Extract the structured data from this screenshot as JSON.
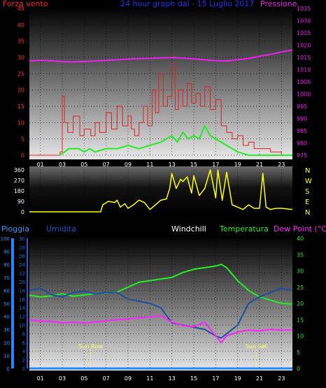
{
  "header": {
    "left_label": "Forza vento",
    "center_label": "24 hour graph dal - 15 Luglio 2017",
    "right_label": "Pressione"
  },
  "colors": {
    "wind": "#e02020",
    "gust_left": "#ff0000",
    "gust_green": "#22ee22",
    "pressure": "#ee22ee",
    "direction": "#ffff00",
    "rain": "#2288ff",
    "humidity": "#1a4fa0",
    "temperature": "#22ee22",
    "dewpoint": "#ff22ff",
    "windchill": "#ffffff",
    "sun": "#ffff66"
  },
  "chart_data": [
    {
      "type": "line",
      "title": "24 hour graph dal - 15 Luglio 2017",
      "x_ticks": [
        "01",
        "03",
        "05",
        "07",
        "09",
        "11",
        "13",
        "15",
        "17",
        "19",
        "21",
        "23"
      ],
      "y_left": {
        "label": "Forza vento",
        "ticks": [
          0,
          5,
          10,
          15,
          20,
          25,
          30,
          35,
          40,
          45
        ],
        "range": [
          0,
          45
        ]
      },
      "y_right": {
        "label": "Pressione",
        "ticks": [
          975,
          980,
          985,
          990,
          995,
          1000,
          1005,
          1010,
          1015,
          1020,
          1025,
          1030,
          1035
        ],
        "range": [
          975,
          1035
        ]
      },
      "series": [
        {
          "role": "wind",
          "axis": "left",
          "x": [
            0,
            2.8,
            3.0,
            3.2,
            3.5,
            4.0,
            4.6,
            5.0,
            5.6,
            6.0,
            6.4,
            7.0,
            7.5,
            8.0,
            8.5,
            9.0,
            9.3,
            9.6,
            10.0,
            10.4,
            10.8,
            11.2,
            11.5,
            11.8,
            12.2,
            12.6,
            13.0,
            13.3,
            13.6,
            14.0,
            14.4,
            14.8,
            15.2,
            15.6,
            16.0,
            16.5,
            17.0,
            17.5,
            18.0,
            18.5,
            19.0,
            19.5,
            20.0,
            20.5,
            21.0,
            22.0,
            23.0,
            24.0
          ],
          "y": [
            0,
            1,
            18,
            10,
            7,
            12,
            6,
            8,
            6,
            10,
            7,
            13,
            8,
            15,
            9,
            12,
            8,
            6,
            10,
            15,
            9,
            20,
            13,
            25,
            15,
            18,
            28,
            14,
            20,
            15,
            22,
            16,
            19,
            15,
            21,
            14,
            17,
            9,
            7,
            5,
            6,
            3,
            4,
            2,
            2,
            1,
            0,
            0
          ]
        },
        {
          "role": "gust",
          "axis": "left",
          "x": [
            2.8,
            3.2,
            3.6,
            4.5,
            5.0,
            5.5,
            6.0,
            7.0,
            8.0,
            9.0,
            10.0,
            11.0,
            12.0,
            12.5,
            13.0,
            13.5,
            14.0,
            14.5,
            15.0,
            15.5,
            16.0,
            16.5,
            17.0,
            17.5,
            18.0,
            18.5,
            19.0,
            20.0,
            21.0,
            22.0,
            23.0,
            24.0
          ],
          "y": [
            0,
            1,
            2,
            2,
            1,
            2,
            1,
            2,
            2,
            3,
            2,
            3,
            4,
            5,
            6,
            4,
            7,
            5,
            6,
            5,
            9,
            6,
            5,
            4,
            3,
            2,
            1,
            0,
            0,
            0,
            0,
            0
          ]
        },
        {
          "role": "pressure",
          "axis": "right",
          "x": [
            0,
            1,
            2,
            3,
            4,
            5,
            6,
            7,
            8,
            9,
            10,
            11,
            12,
            13,
            14,
            15,
            16,
            17,
            18,
            19,
            20,
            21,
            22,
            23,
            24
          ],
          "y": [
            1013.5,
            1013.8,
            1013.6,
            1013.2,
            1013.1,
            1013.3,
            1013.5,
            1013.8,
            1014.0,
            1014.3,
            1014.5,
            1014.6,
            1014.8,
            1014.9,
            1014.7,
            1014.4,
            1014.0,
            1013.6,
            1013.5,
            1014.0,
            1014.6,
            1015.4,
            1016.2,
            1017.2,
            1018.0
          ]
        }
      ]
    },
    {
      "type": "line",
      "y_left": {
        "ticks": [
          0,
          90,
          180,
          270,
          360
        ],
        "range": [
          0,
          360
        ]
      },
      "y_right": {
        "ticks": [
          "N",
          "W",
          "S",
          "E",
          "N"
        ]
      },
      "series": [
        {
          "role": "direction",
          "x": [
            0,
            6.5,
            6.7,
            7.2,
            7.8,
            8.0,
            8.3,
            8.7,
            9.0,
            9.5,
            10.0,
            10.5,
            11.0,
            11.5,
            12.0,
            12.5,
            12.8,
            13.0,
            13.4,
            13.8,
            14.0,
            14.4,
            14.8,
            15.0,
            15.5,
            16.0,
            16.5,
            17.0,
            17.2,
            17.6,
            18.0,
            18.5,
            19.0,
            19.5,
            20.0,
            20.5,
            21.0,
            21.3,
            21.6,
            22.0,
            22.5,
            23.0,
            24.0
          ],
          "y": [
            0,
            0,
            60,
            90,
            80,
            100,
            40,
            70,
            30,
            60,
            100,
            80,
            20,
            60,
            100,
            110,
            200,
            330,
            200,
            280,
            260,
            300,
            160,
            310,
            140,
            200,
            360,
            120,
            360,
            100,
            340,
            60,
            40,
            20,
            60,
            30,
            30,
            330,
            40,
            20,
            30,
            30,
            20
          ]
        }
      ]
    },
    {
      "type": "line",
      "x_ticks": [
        "01",
        "03",
        "05",
        "07",
        "09",
        "11",
        "13",
        "15",
        "17",
        "19",
        "21",
        "23"
      ],
      "legend": [
        "Pioggia",
        "Umidita",
        "Windchill",
        "Temperatura",
        "Dew Point (°C)"
      ],
      "y_rain": {
        "label": "Pioggia",
        "ticks": [
          0,
          10,
          20,
          30,
          40,
          50,
          60,
          70,
          80,
          90,
          100
        ],
        "range": [
          0,
          100
        ]
      },
      "y_hum": {
        "label": "Umidita",
        "ticks": [
          0,
          2,
          4,
          6,
          8,
          10,
          12,
          14,
          16,
          18,
          20,
          22,
          24,
          26,
          28,
          30
        ],
        "range": [
          0,
          30
        ]
      },
      "y_temp": {
        "label": "Temperatura",
        "ticks": [
          0,
          5,
          10,
          15,
          20,
          25,
          30,
          35,
          40
        ],
        "range": [
          0,
          40
        ]
      },
      "annotations": [
        {
          "label": "Sun Rise",
          "x": 5.6
        },
        {
          "label": "Sun Set",
          "x": 20.7
        }
      ],
      "series": [
        {
          "role": "temperature",
          "axis": "temp",
          "x": [
            0,
            1,
            2,
            3,
            4,
            5,
            6,
            7,
            8,
            9,
            10,
            11,
            12,
            13,
            14,
            15,
            16,
            17,
            17.5,
            18,
            19,
            20,
            21,
            22,
            23,
            24
          ],
          "y": [
            22.5,
            22.0,
            22.3,
            23.0,
            22.2,
            22.6,
            23.0,
            23.2,
            23.5,
            25.0,
            26.5,
            27.0,
            27.5,
            28.0,
            29.5,
            30.5,
            31.0,
            31.5,
            32.0,
            31.0,
            27.0,
            24.0,
            22.0,
            21.0,
            20.0,
            19.8
          ]
        },
        {
          "role": "humidity",
          "axis": "hum",
          "x": [
            0,
            1,
            2,
            3,
            4,
            5,
            6,
            7,
            8,
            9,
            10,
            11,
            12,
            13,
            14,
            15,
            16,
            17,
            17.5,
            18,
            19,
            20,
            21,
            22,
            23,
            24
          ],
          "y": [
            18.0,
            18.5,
            17.0,
            16.5,
            17.5,
            17.8,
            17.2,
            17.5,
            17.5,
            16.0,
            15.5,
            15.0,
            14.0,
            10.5,
            10.0,
            9.5,
            9.0,
            7.5,
            7.0,
            8.0,
            10.0,
            15.0,
            16.5,
            17.5,
            18.5,
            18.0
          ]
        },
        {
          "role": "dewpoint",
          "axis": "temp",
          "x": [
            0,
            1,
            2,
            3,
            4,
            5,
            6,
            7,
            8,
            9,
            10,
            11,
            12,
            13,
            14,
            15,
            16,
            17,
            17.5,
            18,
            19,
            20,
            21,
            22,
            23,
            24
          ],
          "y": [
            15.0,
            14.5,
            14.5,
            14.0,
            14.2,
            14.0,
            14.3,
            14.6,
            15.0,
            15.2,
            15.6,
            15.8,
            16.2,
            14.2,
            13.2,
            12.8,
            14.2,
            10.0,
            8.0,
            10.0,
            11.2,
            11.8,
            11.5,
            12.0,
            11.8,
            11.8
          ]
        },
        {
          "role": "rain",
          "axis": "rain",
          "x": [
            0,
            24
          ],
          "y": [
            0,
            0
          ]
        }
      ]
    }
  ]
}
